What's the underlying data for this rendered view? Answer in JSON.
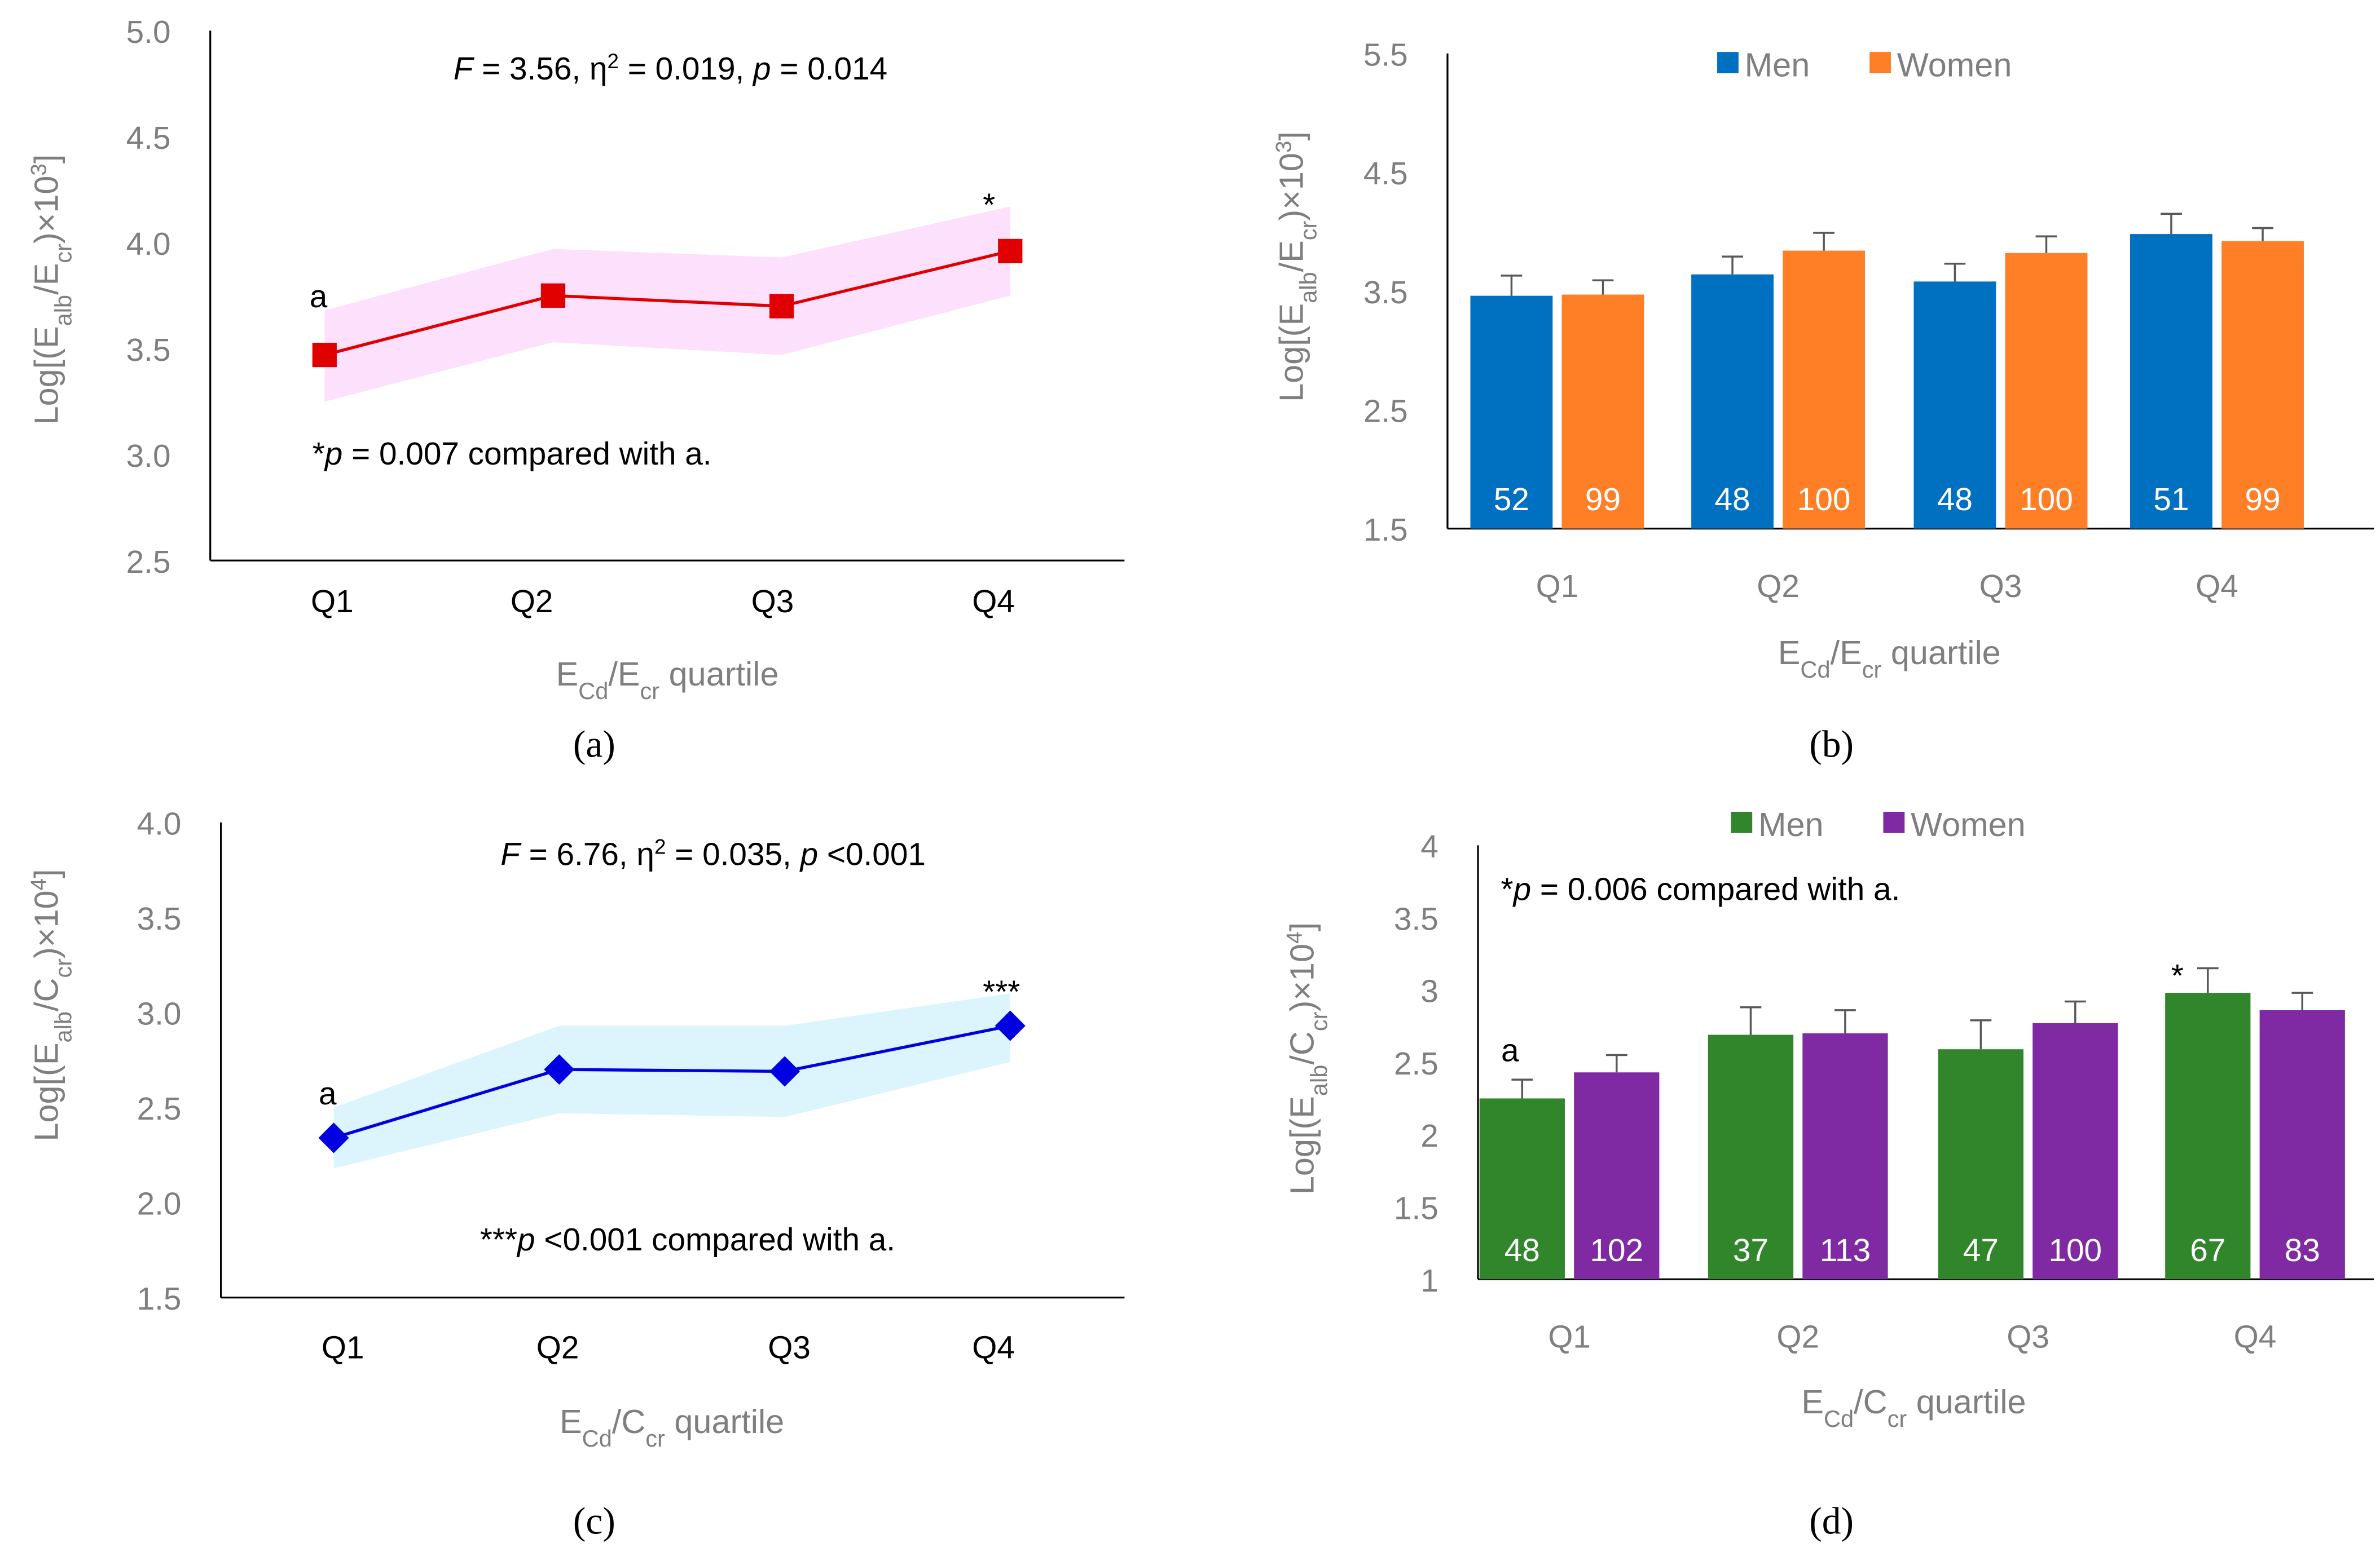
{
  "chart_data": [
    {
      "id": "a",
      "type": "line",
      "caption": "(a)",
      "categories": [
        "Q1",
        "Q2",
        "Q3",
        "Q4"
      ],
      "values": [
        3.47,
        3.75,
        3.7,
        3.96
      ],
      "band_upper": [
        3.68,
        3.97,
        3.93,
        4.17
      ],
      "band_lower": [
        3.25,
        3.53,
        3.47,
        3.75
      ],
      "marker": "square",
      "line_color": "#e00000",
      "band_color": "#fde0fb",
      "ylim": [
        2.5,
        5.0
      ],
      "yticks": [
        "2.5",
        "3.0",
        "3.5",
        "4.0",
        "4.5",
        "5.0"
      ],
      "ylabel": [
        {
          "t": "Log[(E"
        },
        {
          "t": "alb",
          "sub": true
        },
        {
          "t": "/E"
        },
        {
          "t": "cr",
          "sub": true
        },
        {
          "t": ")×10"
        },
        {
          "t": "3",
          "sup": true
        },
        {
          "t": "]"
        }
      ],
      "xlabel": [
        {
          "t": "E"
        },
        {
          "t": "Cd",
          "sub": true
        },
        {
          "t": "/E"
        },
        {
          "t": "cr",
          "sub": true
        },
        {
          "t": " quartile"
        }
      ],
      "stats": [
        {
          "t": "F",
          "i": true
        },
        {
          "t": " = 3.56, η"
        },
        {
          "t": "2",
          "sup": true
        },
        {
          "t": " = 0.019, "
        },
        {
          "t": "p",
          "i": true
        },
        {
          "t": " = 0.014"
        }
      ],
      "note": [
        {
          "t": "*"
        },
        {
          "t": "p",
          "i": true
        },
        {
          "t": " = 0.007 compared with a."
        }
      ],
      "point_labels": [
        {
          "index": 0,
          "text": "a"
        },
        {
          "index": 3,
          "text": "*"
        }
      ]
    },
    {
      "id": "b",
      "type": "bar",
      "caption": "(b)",
      "categories": [
        "Q1",
        "Q2",
        "Q3",
        "Q4"
      ],
      "series": [
        {
          "name": "Men",
          "color": "#0070c0",
          "values": [
            3.46,
            3.64,
            3.58,
            3.98
          ],
          "err_top": [
            3.63,
            3.79,
            3.73,
            4.15
          ],
          "n": [
            "52",
            "48",
            "48",
            "51"
          ]
        },
        {
          "name": "Women",
          "color": "#ff7f27",
          "values": [
            3.47,
            3.84,
            3.82,
            3.92
          ],
          "err_top": [
            3.59,
            3.99,
            3.96,
            4.03
          ],
          "n": [
            "99",
            "100",
            "100",
            "99"
          ]
        }
      ],
      "ylim": [
        1.5,
        5.5
      ],
      "yticks": [
        "1.5",
        "2.5",
        "3.5",
        "4.5",
        "5.5"
      ],
      "ylabel": [
        {
          "t": "Log[(E"
        },
        {
          "t": "alb",
          "sub": true
        },
        {
          "t": "/E"
        },
        {
          "t": "cr",
          "sub": true
        },
        {
          "t": ")×10"
        },
        {
          "t": "3",
          "sup": true
        },
        {
          "t": "]"
        }
      ],
      "xlabel": [
        {
          "t": "E"
        },
        {
          "t": "Cd",
          "sub": true
        },
        {
          "t": "/E"
        },
        {
          "t": "cr",
          "sub": true
        },
        {
          "t": " quartile"
        }
      ],
      "legend": "top-center"
    },
    {
      "id": "c",
      "type": "line",
      "caption": "(c)",
      "categories": [
        "Q1",
        "Q2",
        "Q3",
        "Q4"
      ],
      "values": [
        2.34,
        2.7,
        2.69,
        2.93
      ],
      "band_upper": [
        2.5,
        2.93,
        2.93,
        3.1
      ],
      "band_lower": [
        2.18,
        2.47,
        2.45,
        2.74
      ],
      "marker": "diamond",
      "line_color": "#0000e0",
      "band_color": "#dcf4fb",
      "ylim": [
        1.5,
        4.0
      ],
      "yticks": [
        "1.5",
        "2.0",
        "2.5",
        "3.0",
        "3.5",
        "4.0"
      ],
      "ylabel": [
        {
          "t": "Log[(E"
        },
        {
          "t": "alb",
          "sub": true
        },
        {
          "t": "/C"
        },
        {
          "t": "cr",
          "sub": true
        },
        {
          "t": ")×10"
        },
        {
          "t": "4",
          "sup": true
        },
        {
          "t": "]"
        }
      ],
      "xlabel": [
        {
          "t": "E"
        },
        {
          "t": "Cd",
          "sub": true
        },
        {
          "t": "/C"
        },
        {
          "t": "cr",
          "sub": true
        },
        {
          "t": " quartile"
        }
      ],
      "stats": [
        {
          "t": "F",
          "i": true
        },
        {
          "t": " = 6.76, η"
        },
        {
          "t": "2",
          "sup": true
        },
        {
          "t": " = 0.035, "
        },
        {
          "t": "p",
          "i": true
        },
        {
          "t": " <0.001"
        }
      ],
      "note": [
        {
          "t": "***"
        },
        {
          "t": "p",
          "i": true
        },
        {
          "t": " <0.001 compared with a."
        }
      ],
      "point_labels": [
        {
          "index": 0,
          "text": "a"
        },
        {
          "index": 3,
          "text": "***"
        }
      ]
    },
    {
      "id": "d",
      "type": "bar",
      "caption": "(d)",
      "categories": [
        "Q1",
        "Q2",
        "Q3",
        "Q4"
      ],
      "series": [
        {
          "name": "Men",
          "color": "#31862c",
          "values": [
            2.25,
            2.69,
            2.59,
            2.98
          ],
          "err_top": [
            2.38,
            2.88,
            2.79,
            3.15
          ],
          "n": [
            "48",
            "37",
            "47",
            "67"
          ]
        },
        {
          "name": "Women",
          "color": "#7f2aa3",
          "values": [
            2.43,
            2.7,
            2.77,
            2.86
          ],
          "err_top": [
            2.55,
            2.86,
            2.92,
            2.98
          ],
          "n": [
            "102",
            "113",
            "100",
            "83"
          ]
        }
      ],
      "ylim": [
        1,
        4
      ],
      "yticks": [
        "1",
        "1.5",
        "2",
        "2.5",
        "3",
        "3.5",
        "4"
      ],
      "ylabel": [
        {
          "t": "Log[(E"
        },
        {
          "t": "alb",
          "sub": true
        },
        {
          "t": "/C"
        },
        {
          "t": "cr",
          "sub": true
        },
        {
          "t": ")×10"
        },
        {
          "t": "4",
          "sup": true
        },
        {
          "t": "]"
        }
      ],
      "xlabel": [
        {
          "t": "E"
        },
        {
          "t": "Cd",
          "sub": true
        },
        {
          "t": "/C"
        },
        {
          "t": "cr",
          "sub": true
        },
        {
          "t": " quartile"
        }
      ],
      "note": [
        {
          "t": "*"
        },
        {
          "t": "p",
          "i": true
        },
        {
          "t": " = 0.006 compared with a."
        }
      ],
      "bar_labels": [
        {
          "series": 0,
          "index": 0,
          "text": "a"
        },
        {
          "series": 0,
          "index": 3,
          "text": "*"
        }
      ],
      "legend": "top-center"
    }
  ]
}
